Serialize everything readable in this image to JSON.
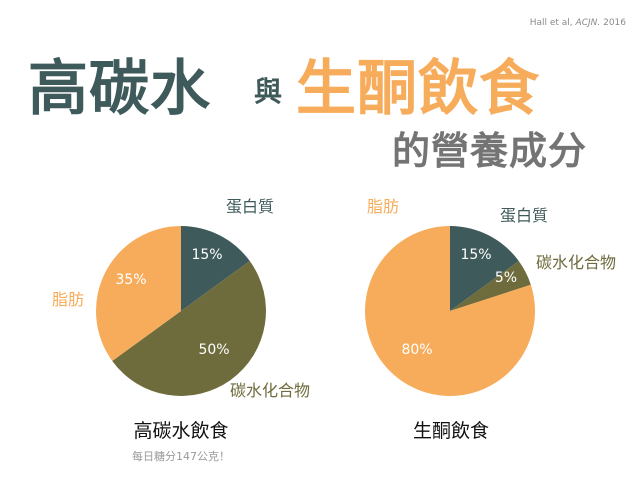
{
  "citation": {
    "text": "Hall et al, ",
    "journal": "ACJN.",
    "year": " 2016"
  },
  "title": {
    "part_a": "高碳水",
    "joiner": "與",
    "part_b": "生酮飲食",
    "subtitle": "的營養成分"
  },
  "colors": {
    "protein": "#3f5a5a",
    "carbohydrate": "#6e6c3c",
    "fat": "#f7ac5b",
    "dark_label": "#3f5a5a",
    "carb_label": "#6e6c3c",
    "fat_label": "#f7ac5b"
  },
  "chart_data": [
    {
      "type": "pie",
      "caption": "高碳水飲食",
      "note": "每日糖分147公克！",
      "slices": [
        {
          "label": "蛋白質",
          "value": 15,
          "value_label": "15%",
          "color_key": "protein"
        },
        {
          "label": "碳水化合物",
          "value": 50,
          "value_label": "50%",
          "color_key": "carbohydrate"
        },
        {
          "label": "脂肪",
          "value": 35,
          "value_label": "35%",
          "color_key": "fat"
        }
      ]
    },
    {
      "type": "pie",
      "caption": "生酮飲食",
      "slices": [
        {
          "label": "蛋白質",
          "value": 15,
          "value_label": "15%",
          "color_key": "protein"
        },
        {
          "label": "碳水化合物",
          "value": 5,
          "value_label": "5%",
          "color_key": "carbohydrate"
        },
        {
          "label": "脂肪",
          "value": 80,
          "value_label": "80%",
          "color_key": "fat"
        }
      ]
    }
  ]
}
